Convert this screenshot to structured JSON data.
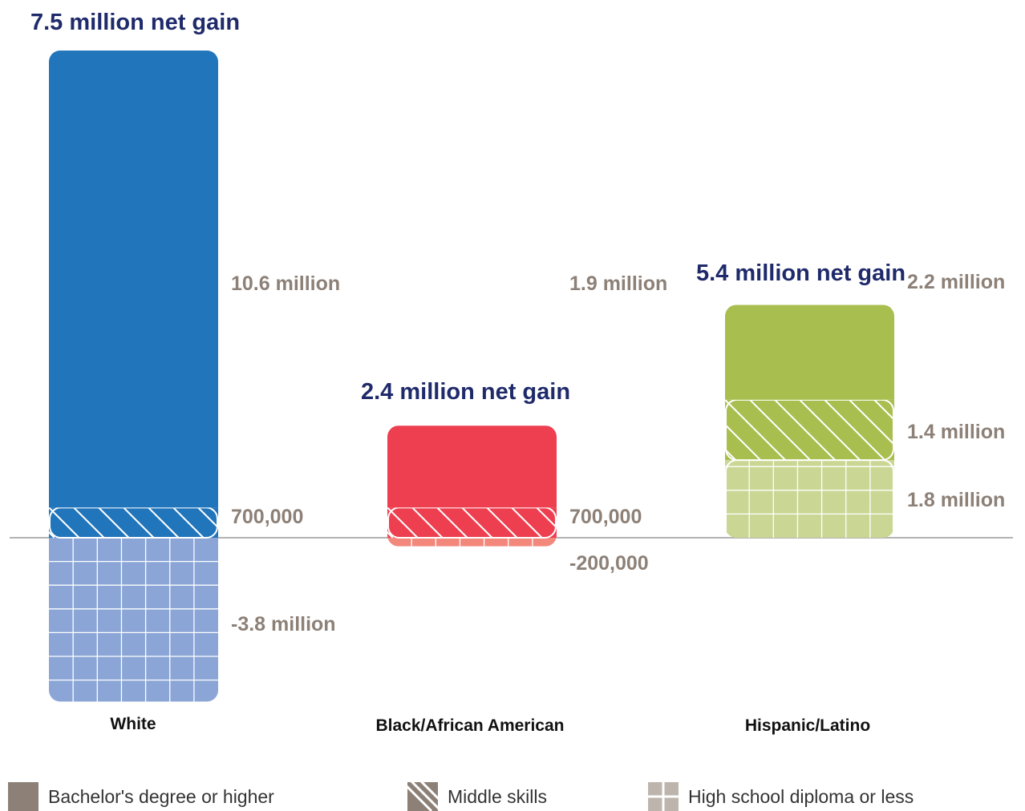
{
  "chart_data": {
    "type": "bar",
    "layout": "stacked-diverging",
    "categories": [
      "White",
      "Black/African American",
      "Hispanic/Latino"
    ],
    "series": [
      {
        "name": "Bachelor's degree or higher",
        "values": [
          10.6,
          1.9,
          2.2
        ]
      },
      {
        "name": "Middle skills",
        "values": [
          0.7,
          0.7,
          1.4
        ]
      },
      {
        "name": "High school diploma or less",
        "values": [
          -3.8,
          -0.2,
          1.8
        ]
      }
    ],
    "value_labels": [
      [
        "10.6 million",
        "1.9 million",
        "2.2 million"
      ],
      [
        "700,000",
        "700,000",
        "1.4 million"
      ],
      [
        "-3.8 million",
        "-200,000",
        "1.8 million"
      ]
    ],
    "totals": [
      7.5,
      2.4,
      5.4
    ],
    "total_labels": [
      "7.5 million net gain",
      "2.4 million net gain",
      "5.4 million net gain"
    ],
    "unit": "million",
    "legend_position": "bottom",
    "colors": {
      "White": [
        "#2175bb",
        "#2175bb",
        "#8aa5d6"
      ],
      "Black/African American": [
        "#ee3f50",
        "#ee3f50",
        "#f3877b"
      ],
      "Hispanic/Latino": [
        "#a8be4f",
        "#a8be4f",
        "#cad693"
      ],
      "label": "#8c8077",
      "total": "#1f2a6b",
      "category": "#111111",
      "baseline": "#b3b3b3",
      "legend_bachelor": "#8c8077",
      "legend_middle": "#8c8077",
      "legend_hs": "#bdb5ad"
    }
  },
  "legend": [
    {
      "label": "Bachelor's degree or higher",
      "icon": "solid-square-icon"
    },
    {
      "label": "Middle skills",
      "icon": "hatched-square-icon"
    },
    {
      "label": "High school diploma or less",
      "icon": "grid-square-icon"
    }
  ]
}
